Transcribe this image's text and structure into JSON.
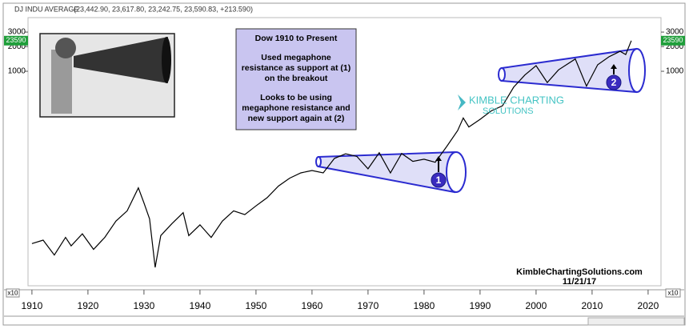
{
  "chart_data": {
    "type": "line",
    "title": "DJ INDU AVERAGE",
    "subtitle": "(23,442.90, 23,617.80, 23,242.75, 23,590.83, +213.590)",
    "x": [
      1910,
      1912,
      1914,
      1916,
      1917,
      1919,
      1921,
      1923,
      1925,
      1927,
      1929,
      1930,
      1931,
      1932,
      1933,
      1935,
      1937,
      1938,
      1940,
      1942,
      1944,
      1946,
      1948,
      1950,
      1952,
      1954,
      1956,
      1958,
      1960,
      1962,
      1964,
      1966,
      1968,
      1970,
      1972,
      1974,
      1976,
      1978,
      1980,
      1982,
      1984,
      1986,
      1987,
      1988,
      1990,
      1992,
      1994,
      1996,
      1998,
      2000,
      2002,
      2004,
      2007,
      2009,
      2011,
      2013,
      2015,
      2016,
      2017
    ],
    "values": [
      80,
      88,
      58,
      95,
      75,
      105,
      68,
      95,
      150,
      200,
      381,
      250,
      160,
      41,
      100,
      140,
      190,
      100,
      135,
      95,
      150,
      200,
      180,
      230,
      290,
      400,
      500,
      580,
      620,
      580,
      870,
      990,
      920,
      650,
      1020,
      580,
      1000,
      800,
      850,
      780,
      1200,
      1900,
      2700,
      2100,
      2600,
      3300,
      3800,
      6400,
      9000,
      11700,
      7300,
      10400,
      14100,
      6600,
      12000,
      15000,
      17500,
      16000,
      23590
    ],
    "color": "#000000",
    "log_scale": true,
    "xlim": [
      1909.3,
      2022.3
    ],
    "xticks": [
      1910,
      1920,
      1930,
      1940,
      1950,
      1960,
      1970,
      1980,
      1990,
      2000,
      2010,
      2020
    ],
    "ylim": [
      24.5,
      45000
    ],
    "yticks": [
      {
        "value": 10000,
        "label": "1000"
      },
      {
        "value": 20000,
        "label": "2000"
      },
      {
        "value": 30000,
        "label": "3000"
      }
    ],
    "multiplier": "x10",
    "annotations": {
      "box": [
        "Dow 1910 to Present",
        "Used megaphone",
        "resistance as support at (1)",
        "on the breakout",
        "Looks to be using",
        "megaphone resistance and",
        "new support again at (2)"
      ],
      "logo": [
        "KIMBLE CHARTING",
        "SOLUTIONS"
      ],
      "site": "KimbleChartingSolutions.com",
      "date": "11/21/17",
      "markers": [
        "1",
        "2"
      ]
    }
  }
}
